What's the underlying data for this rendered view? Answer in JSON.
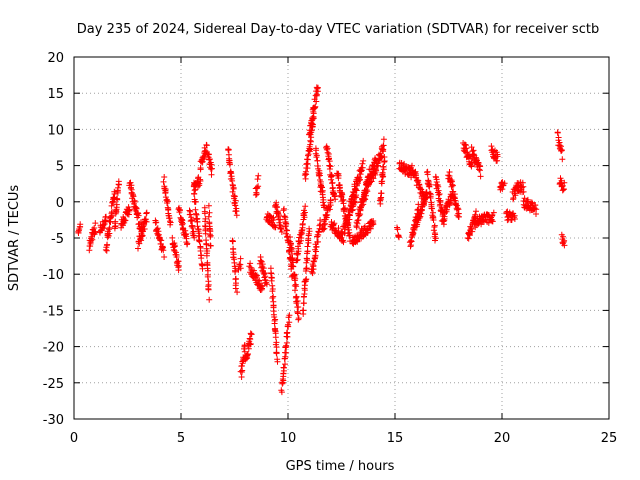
{
  "chart_data": {
    "type": "scatter",
    "title": "Day 235 of 2024, Sidereal Day-to-day VTEC variation (SDTVAR) for receiver sctb",
    "xlabel": "GPS time / hours",
    "ylabel": "SDTVAR / TECUs",
    "xlim": [
      0,
      25
    ],
    "ylim": [
      -30,
      20
    ],
    "xticks": [
      0,
      5,
      10,
      15,
      20,
      25
    ],
    "yticks": [
      -30,
      -25,
      -20,
      -15,
      -10,
      -5,
      0,
      5,
      10,
      15,
      20
    ],
    "xtick_labels": [
      "0",
      "5",
      "10",
      "15",
      "20",
      "25"
    ],
    "ytick_labels": [
      "-30",
      "-25",
      "-20",
      "-15",
      "-10",
      "-5",
      "0",
      "5",
      "10",
      "15",
      "20"
    ],
    "grid": true,
    "marker": "+",
    "color": "#ff0000",
    "series": [
      {
        "name": "SDTVAR",
        "segments": [
          {
            "t0": 0.2,
            "t1": 0.3,
            "v0": -5,
            "v1": -3.5
          },
          {
            "t0": 0.7,
            "t1": 1.0,
            "v0": -6,
            "v1": -3.5
          },
          {
            "t0": 1.2,
            "t1": 1.5,
            "v0": -4,
            "v1": -2.5
          },
          {
            "t0": 1.5,
            "t1": 1.9,
            "v0": -6.5,
            "v1": 1.5
          },
          {
            "t0": 1.9,
            "t1": 2.1,
            "v0": -4,
            "v1": 3
          },
          {
            "t0": 2.2,
            "t1": 2.6,
            "v0": -3,
            "v1": -1
          },
          {
            "t0": 2.6,
            "t1": 3.2,
            "v0": 2.5,
            "v1": -4.5
          },
          {
            "t0": 3.0,
            "t1": 3.4,
            "v0": -6,
            "v1": -2
          },
          {
            "t0": 3.8,
            "t1": 4.2,
            "v0": -3,
            "v1": -7
          },
          {
            "t0": 4.2,
            "t1": 4.5,
            "v0": 3,
            "v1": -3
          },
          {
            "t0": 4.6,
            "t1": 4.9,
            "v0": -5,
            "v1": -9
          },
          {
            "t0": 4.9,
            "t1": 5.3,
            "v0": -1,
            "v1": -6
          },
          {
            "t0": 5.4,
            "t1": 5.6,
            "v0": -1,
            "v1": -5
          },
          {
            "t0": 5.6,
            "t1": 6.0,
            "v0": 1.5,
            "v1": -9
          },
          {
            "t0": 5.6,
            "t1": 5.9,
            "v0": 2,
            "v1": 3
          },
          {
            "t0": 5.9,
            "t1": 6.2,
            "v0": 5,
            "v1": 7.5
          },
          {
            "t0": 6.1,
            "t1": 6.3,
            "v0": -1,
            "v1": -13
          },
          {
            "t0": 6.25,
            "t1": 6.45,
            "v0": 6.5,
            "v1": 4
          },
          {
            "t0": 6.3,
            "t1": 6.4,
            "v0": -1,
            "v1": -6
          },
          {
            "t0": 7.2,
            "t1": 7.6,
            "v0": 7,
            "v1": -2
          },
          {
            "t0": 7.4,
            "t1": 7.6,
            "v0": -5,
            "v1": -12
          },
          {
            "t0": 7.7,
            "t1": 7.8,
            "v0": -9,
            "v1": -8.5
          },
          {
            "t0": 7.8,
            "t1": 8.0,
            "v0": -24,
            "v1": -20
          },
          {
            "t0": 8.0,
            "t1": 8.3,
            "v0": -22,
            "v1": -18.5
          },
          {
            "t0": 8.2,
            "t1": 8.8,
            "v0": -9,
            "v1": -12
          },
          {
            "t0": 8.5,
            "t1": 8.6,
            "v0": 1,
            "v1": 3
          },
          {
            "t0": 8.7,
            "t1": 9.0,
            "v0": -8,
            "v1": -11
          },
          {
            "t0": 9.0,
            "t1": 9.4,
            "v0": -2,
            "v1": -3
          },
          {
            "t0": 9.2,
            "t1": 9.5,
            "v0": -9,
            "v1": -22
          },
          {
            "t0": 9.4,
            "t1": 9.7,
            "v0": 0,
            "v1": -4
          },
          {
            "t0": 9.7,
            "t1": 10.05,
            "v0": -26,
            "v1": -16
          },
          {
            "t0": 9.8,
            "t1": 10.2,
            "v0": -1,
            "v1": -10
          },
          {
            "t0": 10.1,
            "t1": 10.5,
            "v0": -5,
            "v1": -16
          },
          {
            "t0": 10.4,
            "t1": 10.8,
            "v0": -8,
            "v1": -1
          },
          {
            "t0": 10.7,
            "t1": 11.0,
            "v0": -15,
            "v1": -4
          },
          {
            "t0": 10.8,
            "t1": 11.2,
            "v0": 3,
            "v1": 12
          },
          {
            "t0": 11.0,
            "t1": 11.4,
            "v0": 9,
            "v1": 16
          },
          {
            "t0": 11.1,
            "t1": 11.5,
            "v0": -10,
            "v1": -3
          },
          {
            "t0": 11.3,
            "t1": 11.7,
            "v0": 7,
            "v1": -1
          },
          {
            "t0": 11.6,
            "t1": 12.0,
            "v0": -4,
            "v1": 0
          },
          {
            "t0": 11.8,
            "t1": 12.2,
            "v0": 8,
            "v1": 0
          },
          {
            "t0": 12.0,
            "t1": 12.6,
            "v0": -3,
            "v1": -5
          },
          {
            "t0": 12.3,
            "t1": 12.9,
            "v0": 4,
            "v1": -5
          },
          {
            "t0": 12.6,
            "t1": 13.2,
            "v0": -4,
            "v1": 1
          },
          {
            "t0": 12.9,
            "t1": 13.5,
            "v0": 0,
            "v1": 5
          },
          {
            "t0": 13.2,
            "t1": 13.8,
            "v0": -3,
            "v1": 4
          },
          {
            "t0": 13.5,
            "t1": 14.1,
            "v0": 0,
            "v1": 6
          },
          {
            "t0": 13.9,
            "t1": 14.5,
            "v0": 3,
            "v1": 8
          },
          {
            "t0": 13.0,
            "t1": 14.0,
            "v0": -5.5,
            "v1": -3
          },
          {
            "t0": 14.3,
            "t1": 14.5,
            "v0": 0,
            "v1": 6
          },
          {
            "t0": 15.1,
            "t1": 15.2,
            "v0": -4,
            "v1": -5
          },
          {
            "t0": 15.2,
            "t1": 15.8,
            "v0": 5,
            "v1": 4
          },
          {
            "t0": 15.7,
            "t1": 16.1,
            "v0": -6,
            "v1": -1
          },
          {
            "t0": 15.8,
            "t1": 16.4,
            "v0": 4.5,
            "v1": 0
          },
          {
            "t0": 16.0,
            "t1": 16.5,
            "v0": -3,
            "v1": 1
          },
          {
            "t0": 16.5,
            "t1": 16.9,
            "v0": 4,
            "v1": -5
          },
          {
            "t0": 16.9,
            "t1": 17.3,
            "v0": 3,
            "v1": -3
          },
          {
            "t0": 17.2,
            "t1": 17.7,
            "v0": -2,
            "v1": 1
          },
          {
            "t0": 17.5,
            "t1": 18.0,
            "v0": 4,
            "v1": -2
          },
          {
            "t0": 18.2,
            "t1": 18.6,
            "v0": 8,
            "v1": 5
          },
          {
            "t0": 18.4,
            "t1": 18.8,
            "v0": -5,
            "v1": -2
          },
          {
            "t0": 18.6,
            "t1": 19.0,
            "v0": 7,
            "v1": 4
          },
          {
            "t0": 18.7,
            "t1": 19.6,
            "v0": -3,
            "v1": -2
          },
          {
            "t0": 19.5,
            "t1": 19.8,
            "v0": 7,
            "v1": 6
          },
          {
            "t0": 19.9,
            "t1": 20.1,
            "v0": 2,
            "v1": 2.5
          },
          {
            "t0": 20.2,
            "t1": 20.6,
            "v0": -2,
            "v1": -2
          },
          {
            "t0": 20.5,
            "t1": 20.8,
            "v0": 1,
            "v1": 2
          },
          {
            "t0": 20.7,
            "t1": 21.0,
            "v0": 2,
            "v1": 2
          },
          {
            "t0": 21.0,
            "t1": 21.6,
            "v0": 0,
            "v1": -1
          },
          {
            "t0": 22.6,
            "t1": 22.8,
            "v0": 9,
            "v1": 6.5
          },
          {
            "t0": 22.7,
            "t1": 22.9,
            "v0": 3,
            "v1": 2
          },
          {
            "t0": 22.8,
            "t1": 22.9,
            "v0": -4.5,
            "v1": -6
          }
        ]
      }
    ]
  }
}
